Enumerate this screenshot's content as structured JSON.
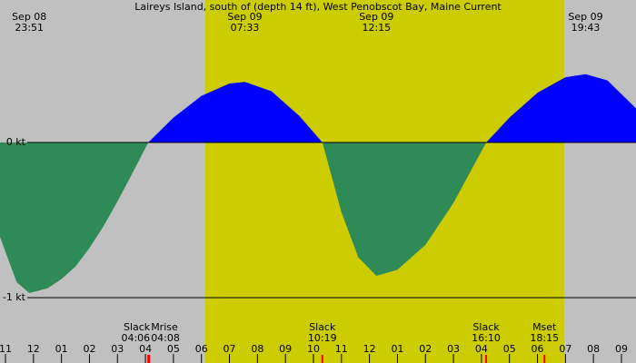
{
  "chart_data": {
    "type": "area",
    "title": "Laireys Island, south of (depth 14 ft), West Penobscot Bay, Maine Current",
    "x": [
      -1.195,
      -0.6,
      -0.15,
      0.5,
      1.0,
      1.5,
      2.0,
      2.5,
      3.0,
      3.5,
      4.1,
      5,
      6,
      7,
      7.55,
      8.5,
      9.5,
      10.32,
      11,
      11.6,
      12.25,
      13,
      14,
      15,
      16.17,
      17,
      18,
      19,
      19.72,
      20.5,
      21.52
    ],
    "values": [
      -0.61,
      -0.9,
      -0.97,
      -0.94,
      -0.88,
      -0.8,
      -0.68,
      -0.54,
      -0.38,
      -0.21,
      0,
      0.16,
      0.3,
      0.38,
      0.39,
      0.33,
      0.17,
      0,
      -0.45,
      -0.74,
      -0.86,
      -0.82,
      -0.66,
      -0.39,
      0,
      0.16,
      0.32,
      0.42,
      0.44,
      0.4,
      0.22
    ],
    "colors": {
      "positive": "#0000ff",
      "negative": "#2e8b57",
      "background": "#c0c0c0",
      "daylight": "#cccc00"
    },
    "daylight": [
      6.14,
      18.95
    ],
    "xlim": [
      -1.195,
      21.52
    ],
    "ylim": [
      -1.421,
      0.918
    ],
    "yticks": [
      {
        "value": 0,
        "label": "0 kt"
      },
      {
        "value": -1,
        "label": "-1 kt"
      }
    ],
    "xticks": [
      {
        "value": -1,
        "label": "11"
      },
      {
        "value": 0,
        "label": "12"
      },
      {
        "value": 1,
        "label": "01"
      },
      {
        "value": 2,
        "label": "02"
      },
      {
        "value": 3,
        "label": "03"
      },
      {
        "value": 4,
        "label": "04"
      },
      {
        "value": 5,
        "label": "05"
      },
      {
        "value": 6,
        "label": "06"
      },
      {
        "value": 7,
        "label": "07"
      },
      {
        "value": 8,
        "label": "08"
      },
      {
        "value": 9,
        "label": "09"
      },
      {
        "value": 10,
        "label": "10"
      },
      {
        "value": 11,
        "label": "11"
      },
      {
        "value": 12,
        "label": "12"
      },
      {
        "value": 13,
        "label": "01"
      },
      {
        "value": 14,
        "label": "02"
      },
      {
        "value": 15,
        "label": "03"
      },
      {
        "value": 16,
        "label": "04"
      },
      {
        "value": 17,
        "label": "05"
      },
      {
        "value": 18,
        "label": "06"
      },
      {
        "value": 19,
        "label": "07"
      },
      {
        "value": 20,
        "label": "08"
      },
      {
        "value": 21,
        "label": "09"
      }
    ],
    "peaks": [
      {
        "date": "Sep 08",
        "time": "23:51",
        "x": -0.15
      },
      {
        "date": "Sep 09",
        "time": "07:33",
        "x": 7.55
      },
      {
        "date": "Sep 09",
        "time": "12:15",
        "x": 12.25
      },
      {
        "date": "Sep 09",
        "time": "19:43",
        "x": 19.72
      }
    ],
    "events": [
      {
        "name": "Slack",
        "time": "04:06",
        "x": 4.1
      },
      {
        "name": "Mrise",
        "time": "04:08",
        "x": 4.133
      },
      {
        "name": "Slack",
        "time": "10:19",
        "x": 10.317
      },
      {
        "name": "Slack",
        "time": "16:10",
        "x": 16.167
      },
      {
        "name": "Mset",
        "time": "18:15",
        "x": 18.25
      }
    ]
  }
}
